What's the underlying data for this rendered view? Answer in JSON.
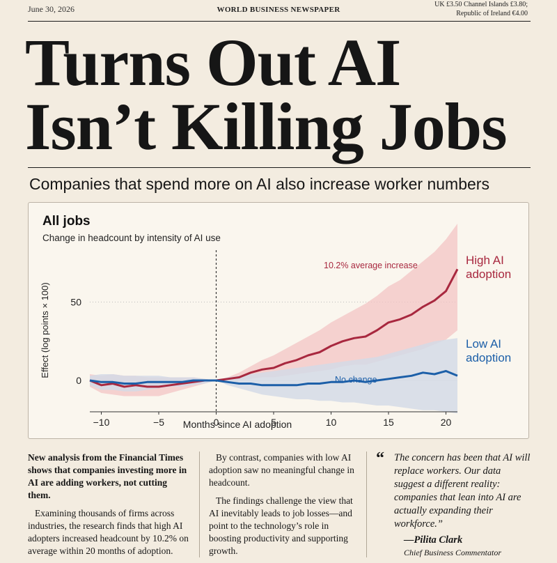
{
  "header": {
    "date": "June 30, 2026",
    "masthead": "WORLD BUSINESS NEWSPAPER",
    "price_line1": "UK £3.50  Channel Islands £3.80;",
    "price_line2": "Republic of Ireland €4.00"
  },
  "headline": {
    "line1": "Turns Out AI",
    "line2": "Isn’t Killing Jobs"
  },
  "subhead": "Companies that spend more on AI also increase worker numbers",
  "chart_data": {
    "type": "line",
    "title": "All jobs",
    "subtitle": "Change in headcount by intensity of AI use",
    "xlabel": "Months since AI adoption",
    "ylabel": "Effect (log points × 100)",
    "xlim": [
      -11,
      21
    ],
    "ylim": [
      -20,
      100
    ],
    "x_ticks": [
      -10,
      -5,
      0,
      5,
      10,
      15,
      20
    ],
    "y_ticks": [
      0,
      50
    ],
    "grid": "y-dotted at 50",
    "annotations": [
      "10.2% average increase",
      "No change"
    ],
    "x": [
      -11,
      -10,
      -9,
      -8,
      -7,
      -6,
      -5,
      -4,
      -3,
      -2,
      -1,
      0,
      1,
      2,
      3,
      4,
      5,
      6,
      7,
      8,
      9,
      10,
      11,
      12,
      13,
      14,
      15,
      16,
      17,
      18,
      19,
      20,
      21
    ],
    "series": [
      {
        "name": "High AI adoption",
        "color": "#a8283f",
        "band_color": "#f3c4c4",
        "values": [
          0,
          -3,
          -2,
          -4,
          -3,
          -4,
          -4,
          -3,
          -2,
          -1,
          0,
          0,
          1,
          2,
          5,
          7,
          8,
          11,
          13,
          16,
          18,
          22,
          25,
          27,
          28,
          32,
          37,
          39,
          42,
          47,
          51,
          57,
          71
        ],
        "upper": [
          4,
          3,
          4,
          3,
          3,
          2,
          2,
          2,
          2,
          2,
          1,
          0,
          2,
          5,
          9,
          13,
          16,
          20,
          24,
          28,
          32,
          37,
          41,
          45,
          49,
          54,
          60,
          64,
          70,
          76,
          82,
          90,
          100
        ],
        "lower": [
          -4,
          -8,
          -9,
          -10,
          -10,
          -10,
          -10,
          -8,
          -6,
          -4,
          -2,
          0,
          0,
          0,
          1,
          2,
          2,
          3,
          4,
          5,
          6,
          7,
          9,
          10,
          10,
          12,
          14,
          16,
          18,
          20,
          23,
          26,
          32
        ]
      },
      {
        "name": "Low AI adoption",
        "color": "#1c5fa8",
        "band_color": "#d3dbe6",
        "values": [
          0,
          -1,
          -1,
          -2,
          -2,
          -1,
          -1,
          -1,
          -1,
          0,
          0,
          0,
          -1,
          -2,
          -2,
          -3,
          -3,
          -3,
          -3,
          -2,
          -2,
          -1,
          -1,
          0,
          -1,
          0,
          1,
          2,
          3,
          5,
          4,
          6,
          3
        ],
        "upper": [
          3,
          4,
          4,
          3,
          3,
          3,
          3,
          2,
          2,
          2,
          1,
          0,
          2,
          3,
          4,
          5,
          6,
          7,
          8,
          9,
          10,
          11,
          12,
          13,
          14,
          15,
          17,
          19,
          21,
          23,
          25,
          26,
          27
        ],
        "lower": [
          -3,
          -6,
          -6,
          -7,
          -7,
          -6,
          -5,
          -4,
          -4,
          -3,
          -2,
          0,
          -3,
          -5,
          -7,
          -9,
          -10,
          -11,
          -12,
          -12,
          -13,
          -13,
          -14,
          -14,
          -15,
          -16,
          -16,
          -17,
          -18,
          -19,
          -19,
          -20,
          -21
        ]
      }
    ]
  },
  "columns": {
    "col1_lead": "New analysis from the Financial Times shows that companies investing more in AI are adding workers, not cutting them.",
    "col1_body": "Examining thousands of firms across industries, the research finds that high AI adopters increased headcount by 10.2% on average within 20 months of adoption.",
    "col2_p1": "By contrast, companies with low AI adoption saw no meaningful change in headcount.",
    "col2_p2": "The findings challenge the view that AI inevitably leads to job losses—and point to the technology’s role in boosting productivity and supporting growth.",
    "quote_mark": "“",
    "quote": "The concern has been that AI will replace workers. Our data suggest a different reality: companies that lean into AI are actually expanding their workforce.”",
    "attribution": "—Pilita Clark",
    "attribution_title": "Chief Business Commentator"
  }
}
